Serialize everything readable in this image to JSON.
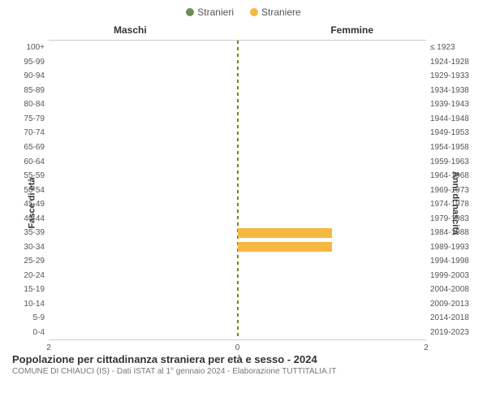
{
  "legend": [
    {
      "label": "Stranieri",
      "color": "#6b8e5a"
    },
    {
      "label": "Straniere",
      "color": "#f5b942"
    }
  ],
  "column_headers": {
    "left": "Maschi",
    "right": "Femmine"
  },
  "axis_titles": {
    "left": "Fasce di età",
    "right": "Anni di nascita"
  },
  "colors": {
    "male": "#6b8e5a",
    "female": "#f5b942",
    "center_line": "#808000",
    "grid": "#ccc",
    "background": "#ffffff"
  },
  "x_axis": {
    "max": 2,
    "ticks": [
      2,
      0,
      2
    ]
  },
  "rows": [
    {
      "age": "100+",
      "birth": "≤ 1923",
      "male": 0,
      "female": 0
    },
    {
      "age": "95-99",
      "birth": "1924-1928",
      "male": 0,
      "female": 0
    },
    {
      "age": "90-94",
      "birth": "1929-1933",
      "male": 0,
      "female": 0
    },
    {
      "age": "85-89",
      "birth": "1934-1938",
      "male": 0,
      "female": 0
    },
    {
      "age": "80-84",
      "birth": "1939-1943",
      "male": 0,
      "female": 0
    },
    {
      "age": "75-79",
      "birth": "1944-1948",
      "male": 0,
      "female": 0
    },
    {
      "age": "70-74",
      "birth": "1949-1953",
      "male": 0,
      "female": 0
    },
    {
      "age": "65-69",
      "birth": "1954-1958",
      "male": 0,
      "female": 0
    },
    {
      "age": "60-64",
      "birth": "1959-1963",
      "male": 0,
      "female": 0
    },
    {
      "age": "55-59",
      "birth": "1964-1968",
      "male": 0,
      "female": 0
    },
    {
      "age": "50-54",
      "birth": "1969-1973",
      "male": 0,
      "female": 0
    },
    {
      "age": "45-49",
      "birth": "1974-1978",
      "male": 0,
      "female": 0
    },
    {
      "age": "40-44",
      "birth": "1979-1983",
      "male": 0,
      "female": 0
    },
    {
      "age": "35-39",
      "birth": "1984-1988",
      "male": 0,
      "female": 1
    },
    {
      "age": "30-34",
      "birth": "1989-1993",
      "male": 0,
      "female": 1
    },
    {
      "age": "25-29",
      "birth": "1994-1998",
      "male": 0,
      "female": 0
    },
    {
      "age": "20-24",
      "birth": "1999-2003",
      "male": 0,
      "female": 0
    },
    {
      "age": "15-19",
      "birth": "2004-2008",
      "male": 0,
      "female": 0
    },
    {
      "age": "10-14",
      "birth": "2009-2013",
      "male": 0,
      "female": 0
    },
    {
      "age": "5-9",
      "birth": "2014-2018",
      "male": 0,
      "female": 0
    },
    {
      "age": "0-4",
      "birth": "2019-2023",
      "male": 0,
      "female": 0
    }
  ],
  "footer": {
    "title": "Popolazione per cittadinanza straniera per età e sesso - 2024",
    "subtitle": "COMUNE DI CHIAUCI (IS) - Dati ISTAT al 1° gennaio 2024 - Elaborazione TUTTITALIA.IT"
  }
}
